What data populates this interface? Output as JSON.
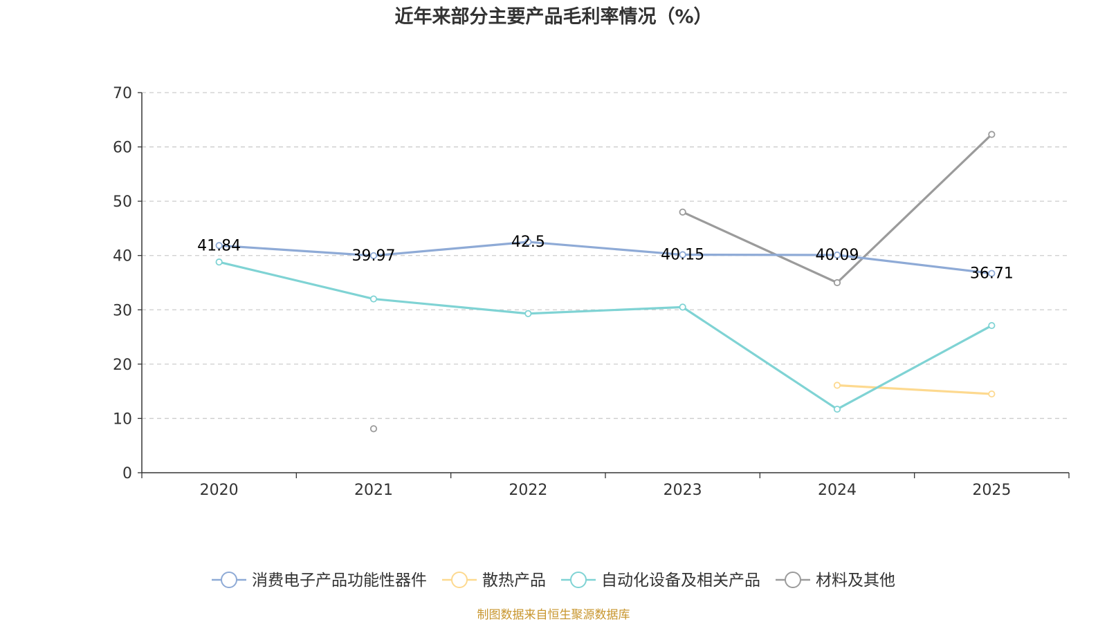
{
  "chart_data": {
    "type": "line",
    "title": "近年来部分主要产品毛利率情况（%）",
    "categories": [
      "2020",
      "2021",
      "2022",
      "2023",
      "2024",
      "2025"
    ],
    "ylim": [
      0,
      70
    ],
    "yticks": [
      0,
      10,
      20,
      30,
      40,
      50,
      60,
      70
    ],
    "xlabel": "",
    "ylabel": "",
    "grid": "horizontal-dashed",
    "legend_position": "bottom",
    "series": [
      {
        "name": "消费电子产品功能性器件",
        "color": "#8eaad6",
        "values": [
          41.84,
          39.97,
          42.5,
          40.15,
          40.09,
          36.71
        ],
        "labels": [
          "41.84",
          "39.97",
          "42.5",
          "40.15",
          "40.09",
          "36.71"
        ]
      },
      {
        "name": "散热产品",
        "color": "#fdd98f",
        "values": [
          null,
          null,
          null,
          null,
          16.1,
          14.5
        ]
      },
      {
        "name": "自动化设备及相关产品",
        "color": "#7fd3d4",
        "values": [
          38.8,
          32.0,
          29.3,
          30.5,
          11.7,
          27.1
        ]
      },
      {
        "name": "材料及其他",
        "color": "#9b9b9b",
        "values": [
          null,
          8.1,
          null,
          48.0,
          35.0,
          62.3
        ]
      }
    ],
    "source": "制图数据来自恒生聚源数据库"
  }
}
